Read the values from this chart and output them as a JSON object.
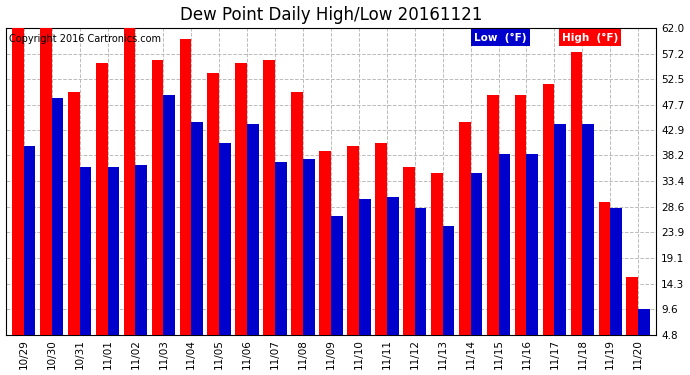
{
  "title": "Dew Point Daily High/Low 20161121",
  "copyright": "Copyright 2016 Cartronics.com",
  "dates": [
    "10/29",
    "10/30",
    "10/31",
    "11/01",
    "11/02",
    "11/03",
    "11/04",
    "11/05",
    "11/06",
    "11/07",
    "11/08",
    "11/09",
    "11/10",
    "11/11",
    "11/12",
    "11/13",
    "11/14",
    "11/15",
    "11/16",
    "11/17",
    "11/18",
    "11/19",
    "11/20"
  ],
  "high": [
    62.0,
    62.0,
    50.0,
    55.5,
    62.0,
    56.0,
    60.0,
    53.5,
    55.5,
    56.0,
    50.0,
    39.0,
    40.0,
    40.5,
    36.0,
    35.0,
    44.5,
    49.5,
    49.5,
    51.5,
    57.5,
    29.5,
    15.5
  ],
  "low": [
    40.0,
    49.0,
    36.0,
    36.0,
    36.5,
    49.5,
    44.5,
    40.5,
    44.0,
    37.0,
    37.5,
    27.0,
    30.0,
    30.5,
    28.5,
    25.0,
    35.0,
    38.5,
    38.5,
    44.0,
    44.0,
    28.5,
    9.6
  ],
  "ylim_min": 4.8,
  "ylim_max": 62.0,
  "yticks": [
    4.8,
    9.6,
    14.3,
    19.1,
    23.9,
    28.6,
    33.4,
    38.2,
    42.9,
    47.7,
    52.5,
    57.2,
    62.0
  ],
  "high_color": "#ff0000",
  "low_color": "#0000cc",
  "background_color": "#ffffff",
  "grid_color": "#bbbbbb",
  "title_fontsize": 12,
  "tick_fontsize": 7.5,
  "copyright_fontsize": 7,
  "legend_high_label": "High  (°F)",
  "legend_low_label": "Low  (°F)"
}
